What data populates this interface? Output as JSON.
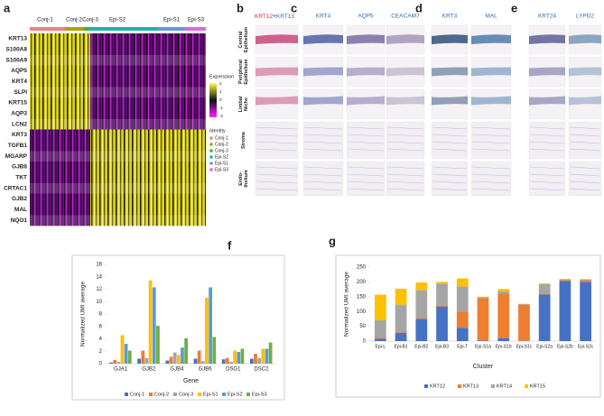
{
  "panels": {
    "a": {
      "label": "a",
      "genes": [
        "KRT13",
        "S100A8",
        "S100A9",
        "AQP5",
        "KRT4",
        "SLPI",
        "KRT15",
        "AQP3",
        "LCN2",
        "KRT3",
        "TGFB1",
        "MGARP",
        "GJB6",
        "TKT",
        "CRTAC1",
        "GJB2",
        "MAL",
        "NQO1"
      ],
      "groups": [
        "Conj-1",
        "Conj-2",
        "Conj-3",
        "Epi-S2",
        "Epi-S1",
        "Epi-S3"
      ],
      "legend_title": "Expression",
      "scale_ticks": [
        2,
        1,
        0,
        -1,
        -2
      ],
      "identity_title": "Identity",
      "identities": [
        "Conj-1",
        "Conj-2",
        "Conj-3",
        "Epi-S2",
        "Epi-S1",
        "Epi-S3"
      ],
      "identity_colors": [
        "#f08080",
        "#b5a000",
        "#3cb44b",
        "#20b2aa",
        "#6495ed",
        "#e066e0"
      ]
    },
    "b": {
      "label": "b",
      "markers": [
        "KRT12",
        "+",
        "KRT13"
      ],
      "marker_colors": [
        "#d6203a",
        "#222222",
        "#2a6fb5"
      ],
      "rows": [
        [
          "Central",
          "Epithelium"
        ],
        [
          "Peripheral",
          "Epithelium"
        ],
        [
          "Limbal",
          "Niche"
        ],
        [
          "Stroma"
        ],
        [
          "Endo-",
          "thelium"
        ]
      ]
    },
    "c": {
      "label": "c",
      "markers": [
        "KRT4",
        "AQP5",
        "CEACAM7"
      ]
    },
    "d": {
      "label": "d",
      "markers": [
        "KRT3",
        "MAL"
      ]
    },
    "e": {
      "label": "e",
      "markers": [
        "KRT24",
        "LYPD2"
      ]
    },
    "f": {
      "label": "f"
    },
    "g": {
      "label": "g"
    }
  },
  "chart_data": [
    {
      "type": "bar",
      "xlabel": "Gene",
      "ylabel": "Normalized UMI average",
      "categories": [
        "GJA1",
        "GJB2",
        "GJB4",
        "GJB6",
        "DSG1",
        "DSC2"
      ],
      "ylim": [
        0,
        16
      ],
      "yticks": [
        0,
        2,
        4,
        6,
        8,
        10,
        12,
        14,
        16
      ],
      "series": [
        {
          "name": "Conj-1",
          "color": "#4472c4",
          "values": [
            0.2,
            0.8,
            0.5,
            0.8,
            0.7,
            0.8
          ]
        },
        {
          "name": "Conj-2",
          "color": "#ed7d31",
          "values": [
            0.6,
            2.1,
            1.1,
            2.1,
            0.9,
            1.6
          ]
        },
        {
          "name": "Conj-3",
          "color": "#a5a5a5",
          "values": [
            0.3,
            0.9,
            1.8,
            0.4,
            0.3,
            0.9
          ]
        },
        {
          "name": "Epi-S1",
          "color": "#ffc000",
          "values": [
            4.6,
            13.4,
            1.4,
            10.6,
            2.1,
            2.4
          ]
        },
        {
          "name": "Epi-S2",
          "color": "#5b9bd5",
          "values": [
            3.2,
            12.3,
            2.6,
            12.3,
            1.9,
            2.4
          ]
        },
        {
          "name": "Epi-S3",
          "color": "#70ad47",
          "values": [
            2.1,
            6.1,
            4.1,
            4.3,
            2.4,
            3.4
          ]
        }
      ]
    },
    {
      "type": "stacked-bar",
      "xlabel": "Cluster",
      "ylabel": "Normalized UMI average",
      "categories": [
        "Epi-L",
        "Epi-B1",
        "Epi-B2",
        "Epi-B3",
        "Epi-T",
        "Epi-S1a",
        "Epi-S1b",
        "Epi-S1c",
        "Epi-S2a",
        "Epi-S2b",
        "Epi-S2c"
      ],
      "ylim": [
        0,
        250
      ],
      "yticks": [
        0,
        50,
        100,
        150,
        200,
        250
      ],
      "series": [
        {
          "name": "KRT12",
          "color": "#4472c4",
          "values": [
            8,
            28,
            75,
            117,
            45,
            2,
            10,
            1,
            158,
            203,
            200
          ]
        },
        {
          "name": "KRT13",
          "color": "#ed7d31",
          "values": [
            4,
            5,
            3,
            2,
            55,
            143,
            150,
            122,
            3,
            3,
            6
          ]
        },
        {
          "name": "KRT14",
          "color": "#a5a5a5",
          "values": [
            58,
            90,
            95,
            75,
            85,
            3,
            8,
            2,
            32,
            3,
            3
          ]
        },
        {
          "name": "KRT15",
          "color": "#ffc000",
          "values": [
            87,
            54,
            25,
            6,
            27,
            2,
            8,
            1,
            2,
            1,
            0
          ]
        }
      ]
    }
  ]
}
